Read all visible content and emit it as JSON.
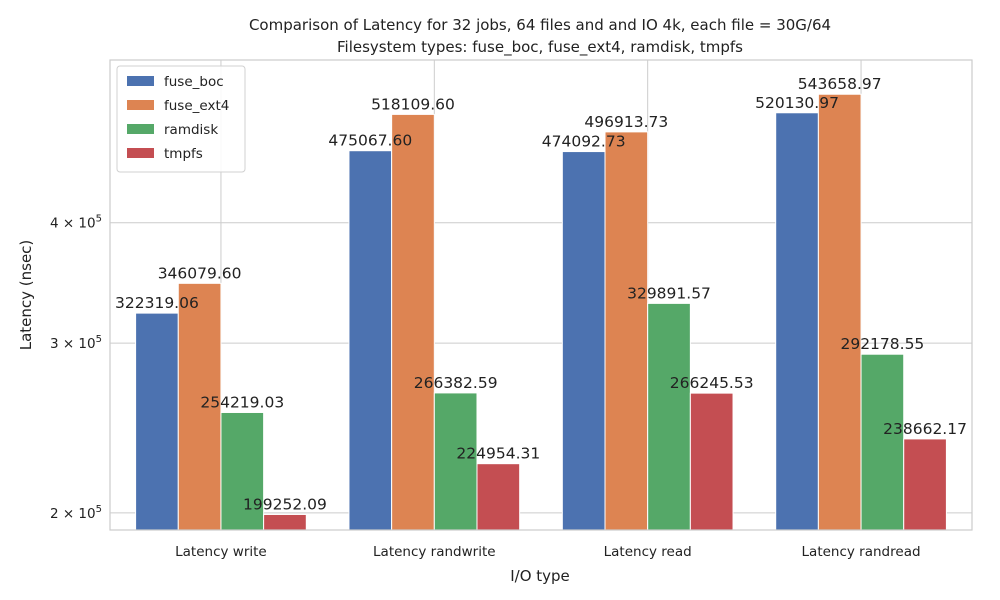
{
  "chart_data": {
    "type": "bar",
    "title": "Comparison of Latency for 32 jobs, 64 files and  and IO 4k, each file = 30G/64",
    "subtitle": "Filesystem types: fuse_boc, fuse_ext4, ramdisk, tmpfs",
    "xlabel": "I/O type",
    "ylabel": "Latency (nsec)",
    "yscale": "log",
    "ylim": [
      192000,
      590000
    ],
    "yticks": [
      {
        "value": 200000,
        "mantissa": "2",
        "base": "10",
        "exp": "5"
      },
      {
        "value": 300000,
        "mantissa": "3",
        "base": "10",
        "exp": "5"
      },
      {
        "value": 400000,
        "mantissa": "4",
        "base": "10",
        "exp": "5"
      }
    ],
    "grid": true,
    "legend_position": "top-left",
    "categories": [
      "Latency write",
      "Latency randwrite",
      "Latency read",
      "Latency randread"
    ],
    "series": [
      {
        "name": "fuse_boc",
        "color": "#4c72b0",
        "values": [
          322319.06,
          475067.6,
          474092.73,
          520130.97
        ],
        "labels": [
          "322319.06",
          "475067.60",
          "474092.73",
          "520130.97"
        ]
      },
      {
        "name": "fuse_ext4",
        "color": "#dd8452",
        "values": [
          346079.6,
          518109.6,
          496913.73,
          543658.97
        ],
        "labels": [
          "346079.60",
          "518109.60",
          "496913.73",
          "543658.97"
        ]
      },
      {
        "name": "ramdisk",
        "color": "#55a868",
        "values": [
          254219.03,
          266382.59,
          329891.57,
          292178.55
        ],
        "labels": [
          "254219.03",
          "266382.59",
          "329891.57",
          "292178.55"
        ]
      },
      {
        "name": "tmpfs",
        "color": "#c44e52",
        "values": [
          199252.09,
          224954.31,
          266245.53,
          238662.17
        ],
        "labels": [
          "199252.09",
          "224954.31",
          "266245.53",
          "238662.17"
        ]
      }
    ]
  }
}
